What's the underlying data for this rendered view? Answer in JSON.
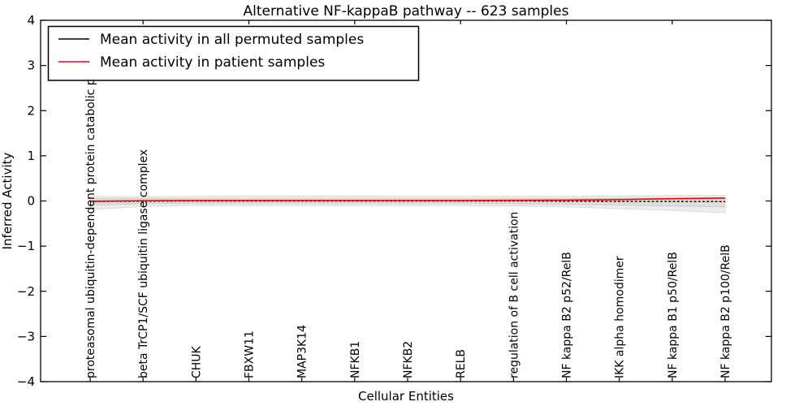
{
  "chart_data": {
    "type": "line",
    "title": "Alternative NF-kappaB pathway -- 623 samples",
    "xlabel": "Cellular Entities",
    "ylabel": "Inferred Activity",
    "ylim": [
      -4,
      4
    ],
    "grid": false,
    "legend_position": "upper left",
    "categories": [
      "proteasomal ubiquitin-dependent protein catabolic pr",
      "beta TrCP1/SCF ubiquitin ligase complex",
      "CHUK",
      "FBXW11",
      "MAP3K14",
      "NFKB1",
      "NFKB2",
      "RELB",
      "regulation of B cell activation",
      "NF kappa B2 p52/RelB",
      "IKK alpha homodimer",
      "NF kappa B1 p50/RelB",
      "NF kappa B2 p100/RelB"
    ],
    "yticks": [
      4,
      3,
      2,
      1,
      0,
      -1,
      -2,
      -3,
      -4
    ],
    "ytick_labels": [
      "4",
      "3",
      "2",
      "1",
      "0",
      "−1",
      "−2",
      "−3",
      "−4"
    ],
    "top_tick_indices": [
      1,
      3,
      5,
      7,
      9,
      11
    ],
    "series": [
      {
        "name": "Mean activity in all permuted samples",
        "color": "#000000",
        "style": "dashed",
        "values": [
          -0.01,
          -0.005,
          0.0,
          0.0,
          0.0,
          0.0,
          0.0,
          0.0,
          0.0,
          -0.005,
          -0.01,
          -0.01,
          -0.015
        ]
      },
      {
        "name": "Mean activity in patient samples",
        "color": "#ff0000",
        "style": "solid",
        "values": [
          -0.005,
          0.005,
          0.01,
          0.01,
          0.01,
          0.01,
          0.01,
          0.01,
          0.015,
          0.02,
          0.03,
          0.05,
          0.065
        ]
      }
    ],
    "band": {
      "name": "permuted-samples-range",
      "color": "#ececec",
      "inner_color": "#dfdfdf",
      "upper": [
        0.1,
        0.09,
        0.1,
        0.11,
        0.11,
        0.11,
        0.1,
        0.1,
        0.1,
        0.1,
        0.11,
        0.12,
        0.13
      ],
      "lower": [
        -0.19,
        -0.12,
        -0.1,
        -0.1,
        -0.1,
        -0.1,
        -0.1,
        -0.1,
        -0.11,
        -0.13,
        -0.17,
        -0.21,
        -0.26
      ],
      "inner_upper": [
        0.05,
        0.05,
        0.05,
        0.05,
        0.05,
        0.05,
        0.05,
        0.05,
        0.05,
        0.05,
        0.06,
        0.06,
        0.07
      ],
      "inner_lower": [
        -0.09,
        -0.06,
        -0.05,
        -0.05,
        -0.05,
        -0.05,
        -0.05,
        -0.05,
        -0.06,
        -0.07,
        -0.09,
        -0.11,
        -0.13
      ]
    }
  }
}
